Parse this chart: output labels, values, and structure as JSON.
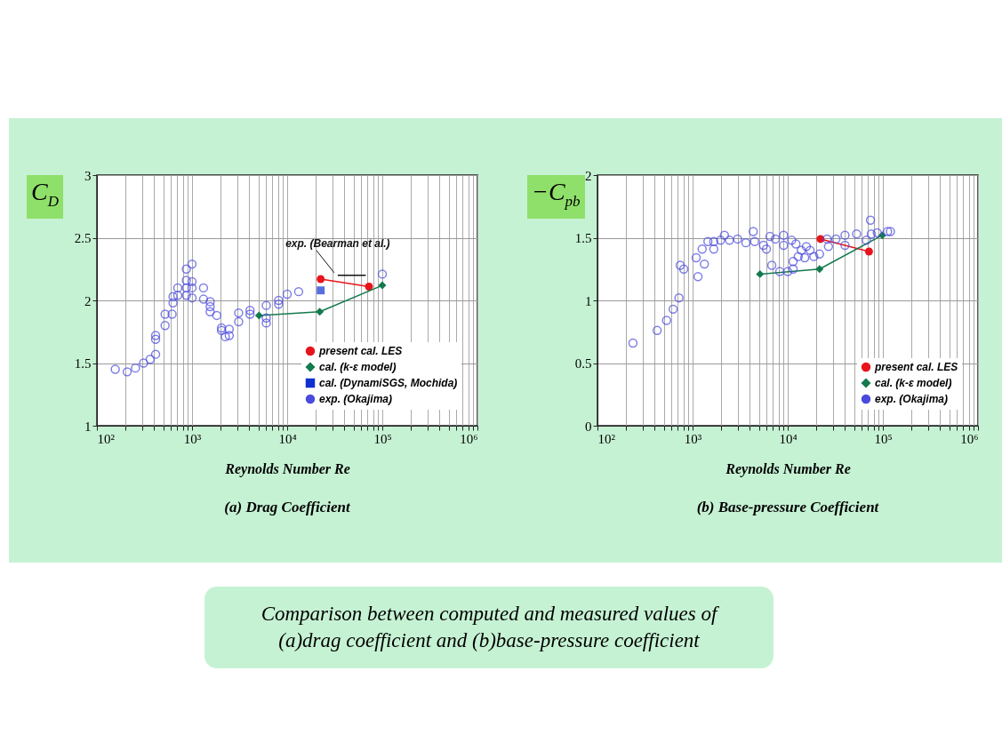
{
  "chart_data": [
    {
      "type": "scatter",
      "title": "(a) Drag Coefficient",
      "xlabel": "Reynolds Number  Re",
      "ylabel": "C$_{D}$",
      "log": "x",
      "grid": true,
      "legend": "bottom right",
      "xlim": [
        100,
        1000000
      ],
      "ylim": [
        1,
        3
      ],
      "xticks": [
        {
          "value": 100,
          "label": "10²"
        },
        {
          "value": 200,
          "label": null
        },
        {
          "value": 300,
          "label": null
        },
        {
          "value": 400,
          "label": null
        },
        {
          "value": 500,
          "label": null
        },
        {
          "value": 600,
          "label": null
        },
        {
          "value": 700,
          "label": null
        },
        {
          "value": 800,
          "label": null
        },
        {
          "value": 900,
          "label": null
        },
        {
          "value": 1000,
          "label": "10³"
        },
        {
          "value": 2000,
          "label": null
        },
        {
          "value": 3000,
          "label": null
        },
        {
          "value": 4000,
          "label": null
        },
        {
          "value": 5000,
          "label": null
        },
        {
          "value": 6000,
          "label": null
        },
        {
          "value": 7000,
          "label": null
        },
        {
          "value": 8000,
          "label": null
        },
        {
          "value": 9000,
          "label": null
        },
        {
          "value": 10000,
          "label": "10⁴"
        },
        {
          "value": 20000,
          "label": null
        },
        {
          "value": 30000,
          "label": null
        },
        {
          "value": 40000,
          "label": null
        },
        {
          "value": 50000,
          "label": null
        },
        {
          "value": 60000,
          "label": null
        },
        {
          "value": 70000,
          "label": null
        },
        {
          "value": 80000,
          "label": null
        },
        {
          "value": 90000,
          "label": null
        },
        {
          "value": 100000,
          "label": "10⁵"
        },
        {
          "value": 200000,
          "label": null
        },
        {
          "value": 300000,
          "label": null
        },
        {
          "value": 400000,
          "label": null
        },
        {
          "value": 500000,
          "label": null
        },
        {
          "value": 600000,
          "label": null
        },
        {
          "value": 700000,
          "label": null
        },
        {
          "value": 800000,
          "label": null
        },
        {
          "value": 900000,
          "label": null
        },
        {
          "value": 1000000,
          "label": "10⁶"
        }
      ],
      "yticks": [
        1,
        1.5,
        2,
        2.5,
        3
      ],
      "series": [
        {
          "name": "present cal. LES",
          "type": "line",
          "marker": "circle",
          "color": "#e8141c",
          "x": [
            22500,
            72400
          ],
          "values": [
            2.17,
            2.11
          ]
        },
        {
          "name": "cal. (k-ε model)",
          "type": "line",
          "marker": "diamond",
          "color": "#137a4e",
          "x": [
            5060,
            22000,
            100000
          ],
          "values": [
            1.88,
            1.91,
            2.12
          ]
        },
        {
          "name": "cal. (DynamiSGS, Mochida)",
          "type": "scatter",
          "marker": "square",
          "color": "#1030d0",
          "x": [
            22500
          ],
          "values": [
            2.08
          ]
        },
        {
          "name": "exp. (Okajima)",
          "type": "scatter",
          "marker": "circle",
          "color": "#4a4adc",
          "x": [
            156,
            208,
            254,
            309,
            363,
            414,
            414,
            414,
            521,
            521,
            617,
            631,
            631,
            708,
            708,
            871,
            871,
            871,
            871,
            1000,
            1000,
            1000,
            1000,
            1320,
            1320,
            1550,
            1550,
            1550,
            1820,
            2040,
            2040,
            2240,
            2460,
            2460,
            3090,
            3090,
            4070,
            4070,
            6030,
            6030,
            6030,
            8130,
            8130,
            10000,
            13200,
            100000
          ],
          "values": [
            1.45,
            1.43,
            1.46,
            1.5,
            1.53,
            1.57,
            1.69,
            1.72,
            1.8,
            1.89,
            1.89,
            1.98,
            2.03,
            2.04,
            2.1,
            2.04,
            2.1,
            2.16,
            2.25,
            2.29,
            2.15,
            2.1,
            2.02,
            2.1,
            2.01,
            1.99,
            1.95,
            1.91,
            1.88,
            1.78,
            1.76,
            1.71,
            1.77,
            1.72,
            1.9,
            1.83,
            1.92,
            1.89,
            1.96,
            1.86,
            1.82,
            1.97,
            2.0,
            2.05,
            2.07,
            2.21
          ]
        },
        {
          "name": "exp. (Bearman et al.)",
          "type": "line",
          "marker": "none",
          "color": "#111111",
          "x": [
            34000,
            67000
          ],
          "values": [
            2.2,
            2.2
          ]
        }
      ]
    },
    {
      "type": "scatter",
      "title": "(b) Base-pressure Coefficient",
      "xlabel": "Reynolds Number  Re",
      "ylabel": "−C$_{pb}$",
      "log": "x",
      "grid": true,
      "legend": "bottom right",
      "xlim": [
        100,
        1000000
      ],
      "ylim": [
        0,
        2
      ],
      "xticks": [
        {
          "value": 100,
          "label": "10²"
        },
        {
          "value": 200,
          "label": null
        },
        {
          "value": 300,
          "label": null
        },
        {
          "value": 400,
          "label": null
        },
        {
          "value": 500,
          "label": null
        },
        {
          "value": 600,
          "label": null
        },
        {
          "value": 700,
          "label": null
        },
        {
          "value": 800,
          "label": null
        },
        {
          "value": 900,
          "label": null
        },
        {
          "value": 1000,
          "label": "10³"
        },
        {
          "value": 2000,
          "label": null
        },
        {
          "value": 3000,
          "label": null
        },
        {
          "value": 4000,
          "label": null
        },
        {
          "value": 5000,
          "label": null
        },
        {
          "value": 6000,
          "label": null
        },
        {
          "value": 7000,
          "label": null
        },
        {
          "value": 8000,
          "label": null
        },
        {
          "value": 9000,
          "label": null
        },
        {
          "value": 10000,
          "label": "10⁴"
        },
        {
          "value": 20000,
          "label": null
        },
        {
          "value": 30000,
          "label": null
        },
        {
          "value": 40000,
          "label": null
        },
        {
          "value": 50000,
          "label": null
        },
        {
          "value": 60000,
          "label": null
        },
        {
          "value": 70000,
          "label": null
        },
        {
          "value": 80000,
          "label": null
        },
        {
          "value": 90000,
          "label": null
        },
        {
          "value": 100000,
          "label": "10⁵"
        },
        {
          "value": 200000,
          "label": null
        },
        {
          "value": 300000,
          "label": null
        },
        {
          "value": 400000,
          "label": null
        },
        {
          "value": 500000,
          "label": null
        },
        {
          "value": 600000,
          "label": null
        },
        {
          "value": 700000,
          "label": null
        },
        {
          "value": 800000,
          "label": null
        },
        {
          "value": 900000,
          "label": null
        },
        {
          "value": 1000000,
          "label": "10⁶"
        }
      ],
      "yticks": [
        0,
        0.5,
        1,
        1.5,
        2
      ],
      "series": [
        {
          "name": "present cal. LES",
          "type": "line",
          "marker": "circle",
          "color": "#e8141c",
          "x": [
            22100,
            71500
          ],
          "values": [
            1.49,
            1.39
          ]
        },
        {
          "name": "cal. (k-ε model)",
          "type": "line",
          "marker": "diamond",
          "color": "#137a4e",
          "x": [
            5110,
            21600,
            98600
          ],
          "values": [
            1.21,
            1.25,
            1.52
          ]
        },
        {
          "name": "exp. (Okajima)",
          "type": "scatter",
          "marker": "circle",
          "color": "#4a4adc",
          "x": [
            236,
            424,
            533,
            624,
            719,
            741,
            807,
            1090,
            1140,
            1260,
            1330,
            1450,
            1670,
            1670,
            1970,
            2160,
            2440,
            2970,
            3630,
            4340,
            4490,
            5560,
            5970,
            6510,
            6800,
            7410,
            8240,
            9050,
            9050,
            10000,
            11000,
            11400,
            11400,
            12200,
            12900,
            13900,
            15100,
            15700,
            17200,
            18800,
            21600,
            25900,
            26800,
            32100,
            40000,
            40000,
            53000,
            67000,
            74100,
            75700,
            87300,
            112000,
            120000
          ],
          "values": [
            0.66,
            0.76,
            0.84,
            0.93,
            1.02,
            1.28,
            1.25,
            1.34,
            1.19,
            1.41,
            1.29,
            1.47,
            1.41,
            1.47,
            1.48,
            1.52,
            1.48,
            1.49,
            1.46,
            1.55,
            1.47,
            1.44,
            1.41,
            1.51,
            1.28,
            1.49,
            1.23,
            1.52,
            1.44,
            1.23,
            1.48,
            1.25,
            1.31,
            1.45,
            1.35,
            1.4,
            1.34,
            1.43,
            1.4,
            1.35,
            1.37,
            1.49,
            1.43,
            1.49,
            1.52,
            1.44,
            1.53,
            1.48,
            1.64,
            1.53,
            1.54,
            1.55,
            1.55
          ]
        }
      ],
      "annotations": [
        "Comparison between computed and measured values of (a)drag coefficient and (b)base-pressure coefficient"
      ]
    }
  ]
}
